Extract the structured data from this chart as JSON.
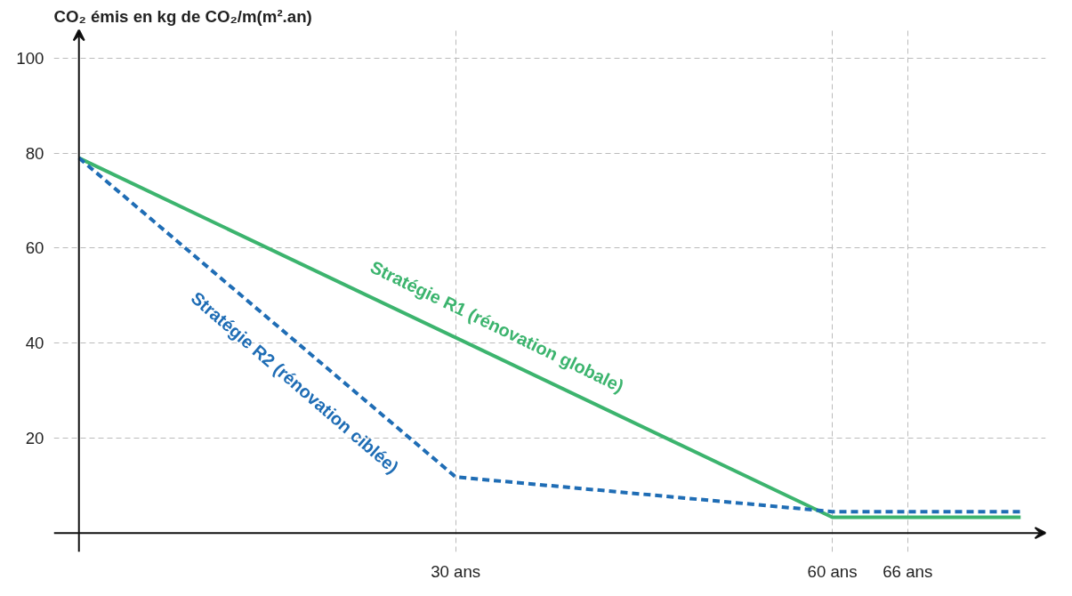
{
  "chart_data": {
    "type": "line",
    "ylabel": "CO₂ émis en kg de CO₂/m(m².an)",
    "xlim": [
      -2,
      77
    ],
    "ylim": [
      -4,
      106
    ],
    "xticks": [
      {
        "value": 30,
        "label": "30 ans"
      },
      {
        "value": 60,
        "label": "60 ans"
      },
      {
        "value": 66,
        "label": "66 ans"
      }
    ],
    "yticks": [
      20,
      40,
      60,
      80,
      100
    ],
    "grid": true,
    "series": [
      {
        "name": "Stratégie R1 (rénovation globale)",
        "color": "#3cb46e",
        "line_style": "solid",
        "x": [
          0,
          60,
          75
        ],
        "values": [
          79,
          3.3,
          3.3
        ]
      },
      {
        "name": "Stratégie R2 (rénovation ciblée)",
        "color": "#1f6db5",
        "line_style": "dashed",
        "x": [
          0,
          30,
          60,
          75
        ],
        "values": [
          79,
          11.8,
          4.5,
          4.5
        ]
      }
    ]
  }
}
